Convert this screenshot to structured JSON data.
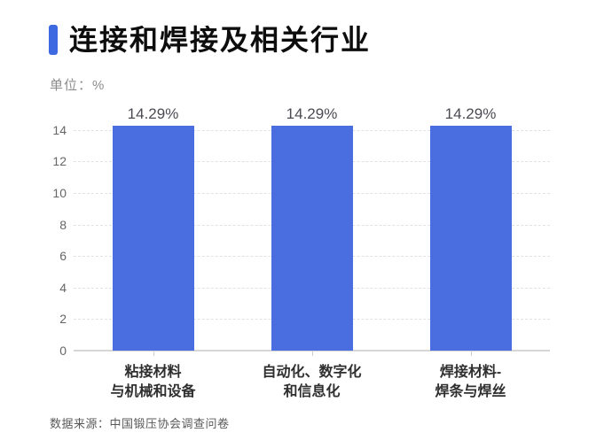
{
  "header": {
    "title": "连接和焊接及相关行业",
    "unit_label": "单位：%"
  },
  "footer": {
    "source": "数据来源：中国锻压协会调查问卷"
  },
  "chart_data": {
    "type": "bar",
    "title": "连接和焊接及相关行业",
    "unit": "单位：%",
    "categories": [
      [
        "粘接材料",
        "与机械和设备"
      ],
      [
        "自动化、数字化",
        "和信息化"
      ],
      [
        "焊接材料-",
        "焊条与焊丝"
      ]
    ],
    "values": [
      14.29,
      14.29,
      14.29
    ],
    "value_labels": [
      "14.29%",
      "14.29%",
      "14.29%"
    ],
    "ylabel": "",
    "xlabel": "",
    "y_ticks": [
      0,
      2,
      4,
      6,
      8,
      10,
      12,
      14
    ],
    "ylim": [
      0,
      15.5
    ],
    "grid": true,
    "grid_style": "dashed",
    "legend": "none",
    "bar_color": "#4a6ee0",
    "accent_color": "#3d6ae1",
    "source": "数据来源：中国锻压协会调查问卷"
  }
}
